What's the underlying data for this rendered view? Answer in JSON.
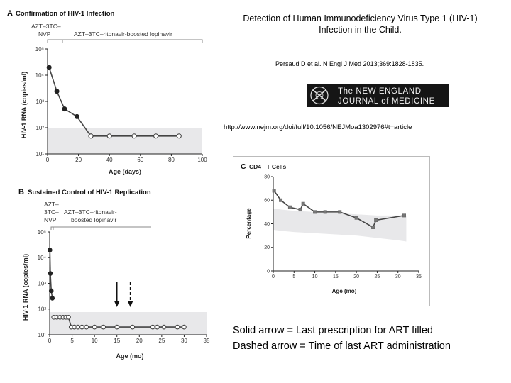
{
  "slide": {
    "title": "Detection of Human Immunodeficiency Virus Type 1 (HIV-1) Infection in the Child.",
    "citation": "Persaud D et al. N Engl J Med 2013;369:1828-1835.",
    "url": "http://www.nejm.org/doi/full/10.1056/NEJMoa1302976#t=article",
    "logo_text": "The NEW ENGLAND JOURNAL of MEDICINE",
    "legend_lines": [
      "Solid arrow = Last prescription for ART filled",
      "Dashed arrow = Time of last ART administration"
    ]
  },
  "colors": {
    "shade": "#e8e8ea",
    "line": "#444444",
    "ruler": "#888888"
  },
  "chart_data": [
    {
      "panel": "A",
      "type": "line",
      "title": "Confirmation of HIV-1 Infection",
      "xlabel": "Age (days)",
      "ylabel": "HIV-1 RNA (copies/ml)",
      "yscale": "log",
      "xlim": [
        0,
        100
      ],
      "ylim": [
        10,
        100000
      ],
      "xticks": [
        "0",
        "20",
        "40",
        "60",
        "80",
        "100"
      ],
      "yticks": [
        "10¹",
        "10²",
        "10³",
        "10⁴",
        "10⁵"
      ],
      "shaded_band": [
        10,
        60
      ],
      "therapy_labels": [
        "AZT–3TC–NVP",
        "AZT–3TC–ritonavir-boosted lopinavir"
      ],
      "therapy_switch_x": 8,
      "series": [
        {
          "style": "filled",
          "x": [
            1,
            6,
            11,
            19,
            28
          ],
          "y": [
            19812,
            2423,
            516,
            265,
            48
          ]
        },
        {
          "style": "open",
          "x": [
            28,
            40,
            56,
            70,
            85
          ],
          "y": [
            48,
            48,
            48,
            48,
            48
          ]
        }
      ]
    },
    {
      "panel": "B",
      "type": "line",
      "title": "Sustained Control of HIV-1 Replication",
      "xlabel": "Age (mo)",
      "ylabel": "HIV-1 RNA (copies/ml)",
      "yscale": "log",
      "xlim": [
        0,
        35
      ],
      "ylim": [
        10,
        100000
      ],
      "xticks": [
        "0",
        "5",
        "10",
        "15",
        "20",
        "25",
        "30",
        "35"
      ],
      "yticks": [
        "10¹",
        "10²",
        "10³",
        "10⁴",
        "10⁵"
      ],
      "shaded_band": [
        10,
        60
      ],
      "therapy_labels": [
        "AZT–3TC–NVP",
        "AZT–3TC–ritonavir-boosted lopinavir"
      ],
      "therapy_switch_x": 0.3,
      "arrows": [
        {
          "style": "solid",
          "x": 15
        },
        {
          "style": "dashed",
          "x": 18
        }
      ],
      "series": [
        {
          "style": "filled",
          "x": [
            0.05,
            0.15,
            0.35,
            0.6
          ],
          "y": [
            19812,
            2423,
            516,
            265
          ]
        },
        {
          "style": "open",
          "x": [
            0.9,
            1.6,
            2.3,
            3.0,
            3.6,
            4.2,
            4.8,
            5.5,
            6.3,
            7.2,
            8.2,
            10.0,
            12.0,
            15.0,
            18.5,
            23.0,
            24.0,
            25.5,
            28.5,
            30.0
          ],
          "y": [
            48,
            48,
            48,
            48,
            48,
            48,
            20,
            20,
            20,
            20,
            20,
            20,
            20,
            20,
            20,
            20,
            20,
            20,
            20,
            20
          ]
        }
      ]
    },
    {
      "panel": "C",
      "type": "line",
      "title": "CD4+ T Cells",
      "xlabel": "Age (mo)",
      "ylabel": "Percentage",
      "xlim": [
        0,
        35
      ],
      "ylim": [
        0,
        80
      ],
      "xticks": [
        "0",
        "5",
        "10",
        "15",
        "20",
        "25",
        "30",
        "35"
      ],
      "yticks": [
        "0",
        "20",
        "40",
        "60",
        "80"
      ],
      "band_x": [
        0,
        2,
        5,
        10,
        15,
        20,
        25,
        30,
        32
      ],
      "band_lower": [
        35,
        34,
        33,
        32,
        31,
        30,
        28,
        26,
        25
      ],
      "band_upper": [
        53,
        52,
        51,
        50,
        49,
        48,
        47,
        47,
        47
      ],
      "series": [
        {
          "x": [
            0.2,
            1.8,
            4.0,
            6.5,
            7.2,
            10.0,
            12.5,
            16.0,
            20.0,
            24.0,
            24.7,
            31.5
          ],
          "y": [
            68,
            60,
            54,
            52,
            57,
            50,
            50,
            50,
            45,
            37,
            43,
            47
          ]
        }
      ]
    }
  ]
}
